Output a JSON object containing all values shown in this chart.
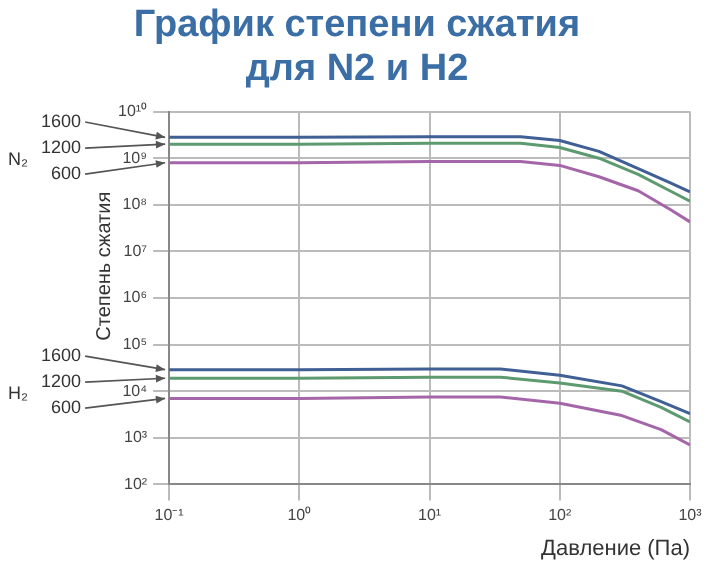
{
  "chart_data": {
    "type": "line",
    "title": "График степени сжатия для N2 и H2",
    "xlabel": "Давление (Па)",
    "ylabel": "Степень сжатия",
    "log": "xy",
    "grid": true,
    "legend": false,
    "marker": "none",
    "line_style": "solid",
    "xlim": [
      0.1,
      1000
    ],
    "ylim": [
      100,
      10000000000
    ],
    "xticks": [
      {
        "value": 0.1,
        "label": "10⁻¹"
      },
      {
        "value": 1,
        "label": "10⁰"
      },
      {
        "value": 10,
        "label": "10¹"
      },
      {
        "value": 100,
        "label": "10²"
      },
      {
        "value": 1000,
        "label": "10³"
      }
    ],
    "yticks": [
      {
        "value": 100,
        "label": "10²"
      },
      {
        "value": 1000,
        "label": "10³"
      },
      {
        "value": 10000,
        "label": "10⁴"
      },
      {
        "value": 100000,
        "label": "10⁵"
      },
      {
        "value": 1000000,
        "label": "10⁶"
      },
      {
        "value": 10000000,
        "label": "10⁷"
      },
      {
        "value": 100000000,
        "label": "10⁸"
      },
      {
        "value": 1000000000,
        "label": "10⁹"
      },
      {
        "value": 10000000000,
        "label": "10¹⁰"
      }
    ],
    "series": [
      {
        "name": "1600",
        "color": "#3f5f95",
        "x": [
          0.1,
          1,
          10,
          50,
          100,
          200,
          400,
          700,
          1000
        ],
        "values": [
          2800000000,
          2800000000,
          2900000000,
          2900000000,
          2400000000,
          1400000000,
          600000000,
          300000000,
          190000000
        ]
      },
      {
        "name": "1200",
        "color": "#5e9a70",
        "x": [
          0.1,
          1,
          10,
          50,
          100,
          200,
          400,
          700,
          1000
        ],
        "values": [
          2000000000,
          2000000000,
          2100000000,
          2100000000,
          1700000000,
          1000000000,
          450000000,
          200000000,
          120000000
        ]
      },
      {
        "name": "600",
        "color": "#a466a8",
        "x": [
          0.1,
          1,
          10,
          50,
          100,
          200,
          400,
          700,
          1000
        ],
        "values": [
          800000000,
          800000000,
          850000000,
          850000000,
          700000000,
          400000000,
          200000000,
          80000000,
          43000000
        ]
      },
      {
        "name": "1600",
        "color": "#3f5f95",
        "x": [
          0.1,
          1,
          10,
          35,
          100,
          300,
          600,
          1000
        ],
        "values": [
          29000,
          29000,
          30000,
          30000,
          22000,
          13000,
          6000,
          3300
        ]
      },
      {
        "name": "1200",
        "color": "#5e9a70",
        "x": [
          0.1,
          1,
          10,
          35,
          100,
          300,
          600,
          1000
        ],
        "values": [
          19000,
          19000,
          20000,
          20000,
          15000,
          10000,
          4500,
          2200
        ]
      },
      {
        "name": "600",
        "color": "#a466a8",
        "x": [
          0.1,
          1,
          10,
          35,
          100,
          300,
          600,
          1000
        ],
        "values": [
          7000,
          7000,
          7500,
          7500,
          5500,
          3000,
          1500,
          700
        ]
      }
    ],
    "annotations": [
      "N₂",
      "H₂"
    ]
  }
}
